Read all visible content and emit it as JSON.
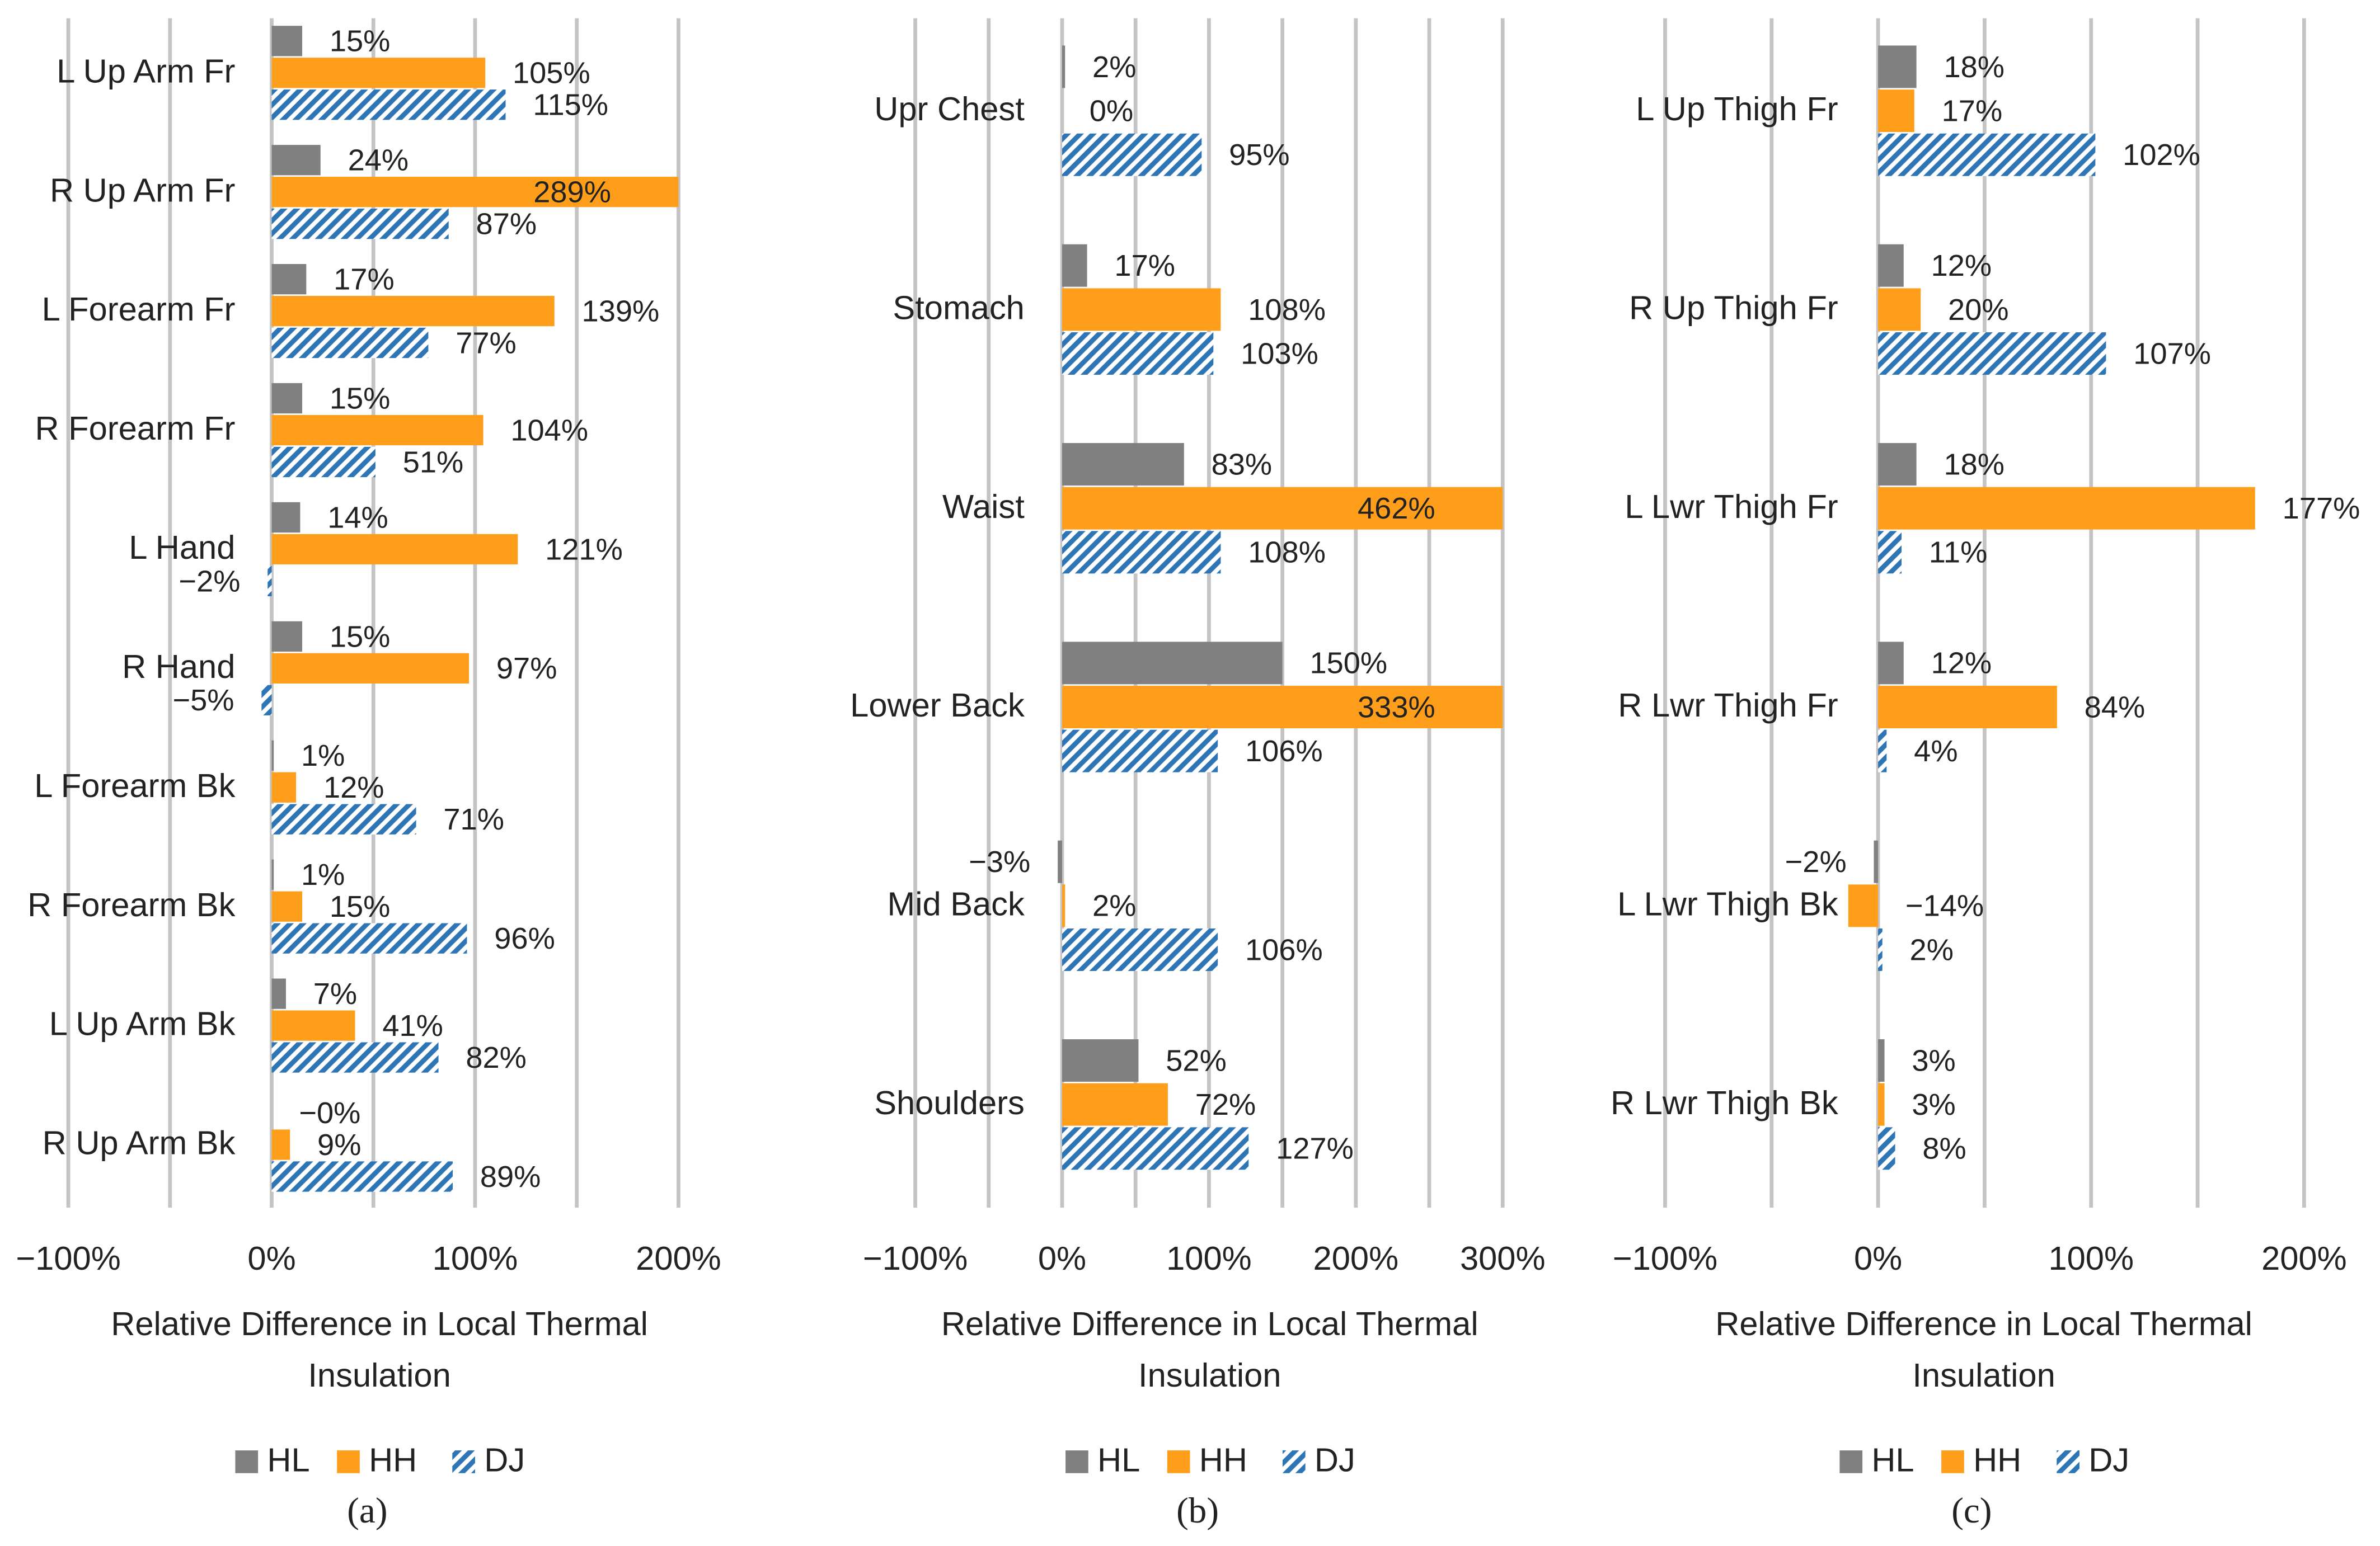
{
  "chart_data": [
    {
      "type": "barh",
      "panel": "(a)",
      "xlabel": "Relative Difference in Local Thermal Insulation",
      "categories": [
        "L Up Arm Fr",
        "R Up Arm Fr",
        "L Forearm Fr",
        "R Forearm Fr",
        "L Hand",
        "R Hand",
        "L Forearm Bk",
        "R Forearm Bk",
        "L Up Arm Bk",
        "R Up Arm Bk"
      ],
      "series": [
        {
          "name": "HL",
          "color": "#808080",
          "values": [
            15,
            24,
            17,
            15,
            14,
            15,
            1,
            1,
            7,
            0
          ],
          "value_labels": [
            "15%",
            "24%",
            "17%",
            "15%",
            "14%",
            "15%",
            "1%",
            "1%",
            "7%",
            "−0%"
          ]
        },
        {
          "name": "HH",
          "color": "#ff9e1b",
          "values": [
            105,
            289,
            139,
            104,
            121,
            97,
            12,
            15,
            41,
            9
          ],
          "value_labels": [
            "105%",
            "289%",
            "139%",
            "104%",
            "121%",
            "97%",
            "12%",
            "15%",
            "41%",
            "9%"
          ]
        },
        {
          "name": "DJ",
          "color": "#2e75b6",
          "pattern": "hatch",
          "values": [
            115,
            87,
            77,
            51,
            -2,
            -5,
            71,
            96,
            82,
            89
          ],
          "value_labels": [
            "115%",
            "87%",
            "77%",
            "51%",
            "−2%",
            "−5%",
            "71%",
            "96%",
            "82%",
            "89%"
          ]
        }
      ],
      "xlim": [
        -100,
        200
      ],
      "xticks": [
        {
          "value": -100,
          "label": "−100%"
        },
        {
          "value": 0,
          "label": "0%"
        },
        {
          "value": 100,
          "label": "100%"
        },
        {
          "value": 200,
          "label": "200%"
        }
      ],
      "xgrid": [
        -100,
        -50,
        0,
        50,
        100,
        150,
        200
      ],
      "legend": "bottom"
    },
    {
      "type": "barh",
      "panel": "(b)",
      "xlabel": "Relative Difference in Local Thermal Insulation",
      "categories": [
        "Upr Chest",
        "Stomach",
        "Waist",
        "Lower Back",
        "Mid Back",
        "Shoulders"
      ],
      "series": [
        {
          "name": "HL",
          "color": "#808080",
          "values": [
            2,
            17,
            83,
            150,
            -3,
            52
          ],
          "value_labels": [
            "2%",
            "17%",
            "83%",
            "150%",
            "−3%",
            "52%"
          ]
        },
        {
          "name": "HH",
          "color": "#ff9e1b",
          "values": [
            0,
            108,
            462,
            333,
            2,
            72
          ],
          "value_labels": [
            "0%",
            "108%",
            "462%",
            "333%",
            "2%",
            "72%"
          ]
        },
        {
          "name": "DJ",
          "color": "#2e75b6",
          "pattern": "hatch",
          "values": [
            95,
            103,
            108,
            106,
            106,
            127
          ],
          "value_labels": [
            "95%",
            "103%",
            "108%",
            "106%",
            "106%",
            "127%"
          ]
        }
      ],
      "xlim": [
        -100,
        300
      ],
      "xticks": [
        {
          "value": -100,
          "label": "−100%"
        },
        {
          "value": 0,
          "label": "0%"
        },
        {
          "value": 100,
          "label": "100%"
        },
        {
          "value": 200,
          "label": "200%"
        },
        {
          "value": 300,
          "label": "300%"
        }
      ],
      "xgrid": [
        -100,
        -50,
        0,
        50,
        100,
        150,
        200,
        250,
        300
      ],
      "legend": "bottom"
    },
    {
      "type": "barh",
      "panel": "(c)",
      "xlabel": "Relative Difference in Local Thermal Insulation",
      "categories": [
        "L Up Thigh Fr",
        "R Up Thigh Fr",
        "L Lwr Thigh Fr",
        "R Lwr Thigh Fr",
        "L Lwr Thigh Bk",
        "R Lwr Thigh Bk"
      ],
      "series": [
        {
          "name": "HL",
          "color": "#808080",
          "values": [
            18,
            12,
            18,
            12,
            -2,
            3
          ],
          "value_labels": [
            "18%",
            "12%",
            "18%",
            "12%",
            "−2%",
            "3%"
          ]
        },
        {
          "name": "HH",
          "color": "#ff9e1b",
          "values": [
            17,
            20,
            177,
            84,
            -14,
            3
          ],
          "value_labels": [
            "17%",
            "20%",
            "177%",
            "84%",
            "−14%",
            "3%"
          ]
        },
        {
          "name": "DJ",
          "color": "#2e75b6",
          "pattern": "hatch",
          "values": [
            102,
            107,
            11,
            4,
            2,
            8
          ],
          "value_labels": [
            "102%",
            "107%",
            "11%",
            "4%",
            "2%",
            "8%"
          ]
        }
      ],
      "xlim": [
        -100,
        200
      ],
      "xticks": [
        {
          "value": -100,
          "label": "−100%"
        },
        {
          "value": 0,
          "label": "0%"
        },
        {
          "value": 100,
          "label": "100%"
        },
        {
          "value": 200,
          "label": "200%"
        }
      ],
      "xgrid": [
        -100,
        -50,
        0,
        50,
        100,
        150,
        200
      ],
      "legend": "bottom"
    }
  ]
}
